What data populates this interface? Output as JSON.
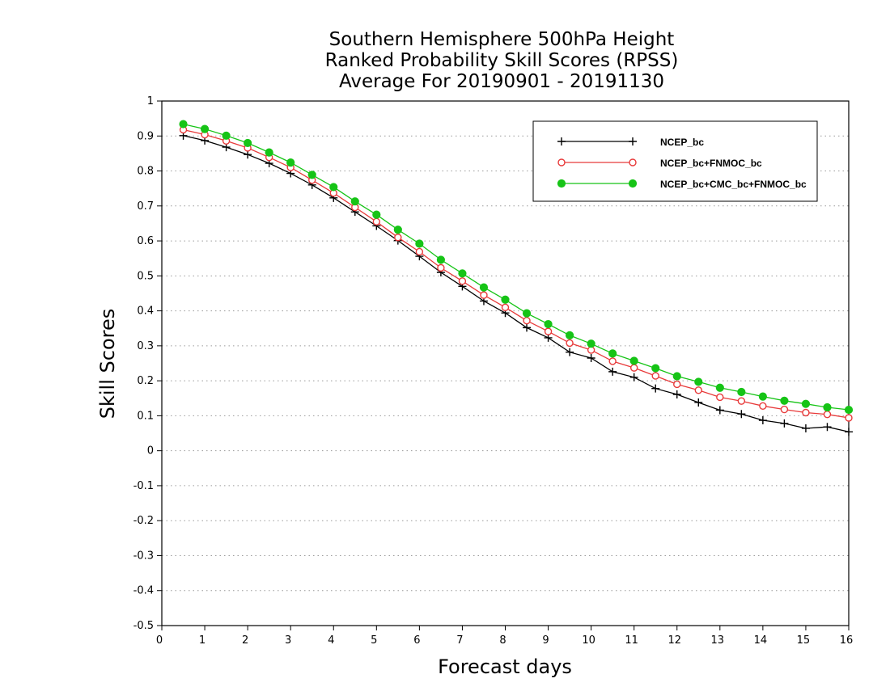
{
  "chart_data": {
    "type": "line",
    "title": [
      "Southern Hemisphere 500hPa Height",
      "Ranked Probability Skill Scores (RPSS)",
      "Average For 20190901 - 20191130"
    ],
    "xlabel": "Forecast days",
    "ylabel": "Skill Scores",
    "xlim": [
      0,
      16
    ],
    "ylim": [
      -0.5,
      1
    ],
    "xticks": [
      0,
      1,
      2,
      3,
      4,
      5,
      6,
      7,
      8,
      9,
      10,
      11,
      12,
      13,
      14,
      15,
      16
    ],
    "yticks": [
      -0.5,
      -0.4,
      -0.3,
      -0.2,
      -0.1,
      0,
      0.1,
      0.2,
      0.3,
      0.4,
      0.5,
      0.6,
      0.7,
      0.8,
      0.9,
      1
    ],
    "ytick_labels": [
      "-0.5",
      "-0.4",
      "-0.3",
      "-0.2",
      "-0.1",
      "0",
      "0.1",
      "0.2",
      "0.3",
      "0.4",
      "0.5",
      "0.6",
      "0.7",
      "0.8",
      "0.9",
      "1"
    ],
    "grid": "horizontal dotted",
    "legend_position": "top-right",
    "x": [
      0.5,
      1,
      1.5,
      2,
      2.5,
      3,
      3.5,
      4,
      4.5,
      5,
      5.5,
      6,
      6.5,
      7,
      7.5,
      8,
      8.5,
      9,
      9.5,
      10,
      10.5,
      11,
      11.5,
      12,
      12.5,
      13,
      13.5,
      14,
      14.5,
      15,
      15.5,
      16
    ],
    "series": [
      {
        "name": "NCEP_bc",
        "color": "#000000",
        "marker": "plus",
        "values": [
          0.901,
          0.887,
          0.868,
          0.847,
          0.822,
          0.793,
          0.76,
          0.723,
          0.683,
          0.643,
          0.601,
          0.556,
          0.51,
          0.47,
          0.428,
          0.394,
          0.352,
          0.323,
          0.282,
          0.265,
          0.226,
          0.21,
          0.178,
          0.161,
          0.138,
          0.116,
          0.105,
          0.087,
          0.078,
          0.064,
          0.068,
          0.054
        ]
      },
      {
        "name": "NCEP_bc+FNMOC_bc",
        "color": "#e83a3a",
        "marker": "open-circle",
        "values": [
          0.918,
          0.904,
          0.886,
          0.866,
          0.839,
          0.81,
          0.774,
          0.737,
          0.696,
          0.655,
          0.61,
          0.569,
          0.523,
          0.485,
          0.445,
          0.41,
          0.372,
          0.341,
          0.308,
          0.288,
          0.256,
          0.237,
          0.214,
          0.19,
          0.173,
          0.153,
          0.142,
          0.128,
          0.118,
          0.109,
          0.104,
          0.094
        ]
      },
      {
        "name": "NCEP_bc+CMC_bc+FNMOC_bc",
        "color": "#16c416",
        "marker": "filled-circle",
        "values": [
          0.934,
          0.92,
          0.901,
          0.88,
          0.853,
          0.824,
          0.789,
          0.754,
          0.713,
          0.675,
          0.632,
          0.592,
          0.546,
          0.507,
          0.467,
          0.432,
          0.393,
          0.362,
          0.33,
          0.306,
          0.278,
          0.257,
          0.236,
          0.213,
          0.197,
          0.18,
          0.168,
          0.155,
          0.143,
          0.134,
          0.124,
          0.117
        ]
      }
    ]
  }
}
